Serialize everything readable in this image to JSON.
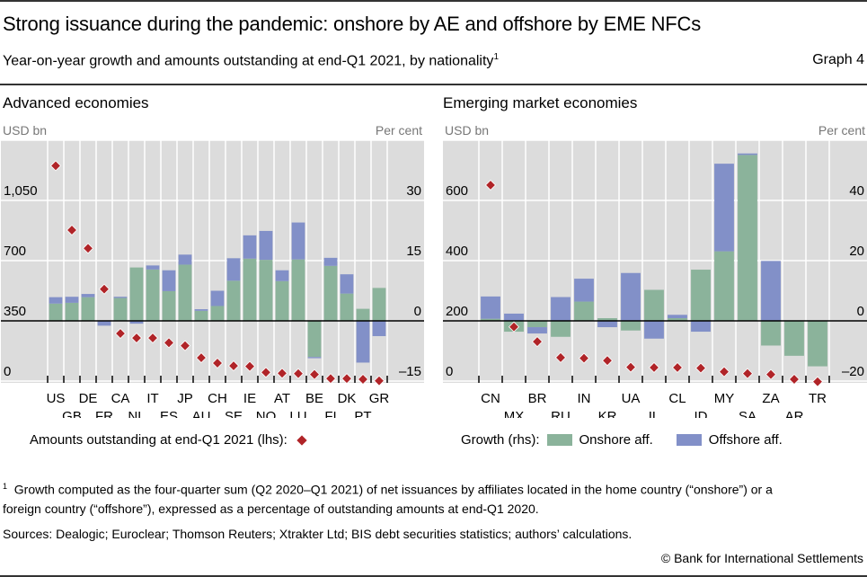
{
  "header": {
    "title": "Strong issuance during the pandemic: onshore by AE and offshore by EME NFCs",
    "subtitle": "Year-on-year growth and amounts outstanding at end-Q1 2021, by nationality",
    "subtitle_footnote_mark": "1",
    "graph_number": "Graph 4"
  },
  "colors": {
    "onshore": "#8BB39B",
    "offshore": "#8290C8",
    "amounts": "#B02428",
    "plot_bg": "#DCDCDC",
    "grid": "#FFFFFF"
  },
  "chart_data": [
    {
      "type": "bar",
      "stacked": true,
      "title": "Advanced economies",
      "ylabel_left": "USD bn",
      "ylabel_right": "Per cent",
      "ylim_left": [
        0,
        1400
      ],
      "yticks_left": [
        "0",
        "350",
        "700",
        "1,050"
      ],
      "yticks_left_values": [
        0,
        350,
        700,
        1050
      ],
      "ylim_right": [
        -15,
        45
      ],
      "yticks_right": [
        "–15",
        "0",
        "15",
        "30"
      ],
      "yticks_right_values": [
        -15,
        0,
        15,
        30
      ],
      "grid": true,
      "categories": [
        "US",
        "GB",
        "DE",
        "FR",
        "CA",
        "NL",
        "IT",
        "ES",
        "JP",
        "AU",
        "CH",
        "SE",
        "IE",
        "NO",
        "AT",
        "LU",
        "BE",
        "FI",
        "DK",
        "PT",
        "GR"
      ],
      "series": [
        {
          "name": "Onshore aff.",
          "axis": "right",
          "kind": "bar",
          "values": [
            4.3,
            4.5,
            5.9,
            0.0,
            5.7,
            13.3,
            12.8,
            7.4,
            14.0,
            2.5,
            3.7,
            10.0,
            15.5,
            15.2,
            9.9,
            15.3,
            -9.0,
            13.7,
            6.8,
            3.0,
            8.2
          ]
        },
        {
          "name": "Offshore aff.",
          "axis": "right",
          "kind": "bar",
          "values": [
            1.6,
            1.5,
            0.8,
            -1.2,
            0.3,
            -0.7,
            1.0,
            5.2,
            2.5,
            0.4,
            3.8,
            5.6,
            5.8,
            7.2,
            2.7,
            9.2,
            -0.3,
            2.0,
            4.8,
            -10.4,
            -3.8
          ]
        },
        {
          "name": "Amounts outstanding at end-Q1 2021 (lhs)",
          "axis": "left",
          "kind": "scatter",
          "values": [
            1262,
            888,
            782,
            545,
            287,
            261,
            261,
            233,
            216,
            146,
            115,
            99,
            96,
            61,
            56,
            54,
            49,
            25,
            25,
            21,
            12
          ]
        }
      ],
      "legend": {
        "label": "Amounts outstanding at end-Q1 2021 (lhs):",
        "placement": "bottom-left"
      }
    },
    {
      "type": "bar",
      "stacked": true,
      "title": "Emerging market economies",
      "ylabel_left": "USD bn",
      "ylabel_right": "Per cent",
      "ylim_left": [
        0,
        800
      ],
      "yticks_left": [
        "0",
        "200",
        "400",
        "600"
      ],
      "yticks_left_values": [
        0,
        200,
        400,
        600
      ],
      "ylim_right": [
        -20,
        60
      ],
      "yticks_right": [
        "–20",
        "0",
        "20",
        "40"
      ],
      "yticks_right_values": [
        -20,
        0,
        20,
        40
      ],
      "grid": true,
      "categories": [
        "CN",
        "MX",
        "BR",
        "RU",
        "IN",
        "KR",
        "UA",
        "IL",
        "CL",
        "ID",
        "MY",
        "SA",
        "ZA",
        "AR",
        "TR"
      ],
      "series": [
        {
          "name": "Onshore aff.",
          "axis": "right",
          "kind": "bar",
          "values": [
            0.7,
            -3.6,
            -2.1,
            -5.3,
            6.4,
            0.9,
            -3.2,
            10.3,
            0.9,
            17.0,
            23.1,
            55.1,
            -8.2,
            -11.6,
            -15.1
          ]
        },
        {
          "name": "Offshore aff.",
          "axis": "right",
          "kind": "bar",
          "values": [
            7.4,
            2.4,
            -2.1,
            7.9,
            7.6,
            -2.1,
            15.9,
            -5.9,
            1.1,
            -3.6,
            29.1,
            0.5,
            19.9,
            0.0,
            0.0
          ]
        },
        {
          "name": "Amounts outstanding at end-Q1 2021 (lhs)",
          "axis": "left",
          "kind": "scatter",
          "values": [
            657,
            186,
            137,
            84,
            82,
            74,
            52,
            51,
            51,
            49,
            37,
            31,
            28,
            12,
            4
          ]
        }
      ],
      "legend": {
        "label": "Growth (rhs):",
        "onshore": "Onshore aff.",
        "offshore": "Offshore aff.",
        "placement": "bottom-left"
      }
    }
  ],
  "footer": {
    "footnote_mark": "1",
    "footnote_line1": "Growth computed as the four-quarter sum (Q2 2020–Q1 2021) of net issuances by affiliates located in the home country (“onshore”) or a",
    "footnote_line2": "foreign country (“offshore”), expressed as a percentage of outstanding amounts at end-Q1 2020.",
    "sources": "Sources: Dealogic; Euroclear; Thomson Reuters; Xtrakter Ltd; BIS debt securities statistics; authors’ calculations.",
    "copyright": "© Bank for International Settlements"
  }
}
